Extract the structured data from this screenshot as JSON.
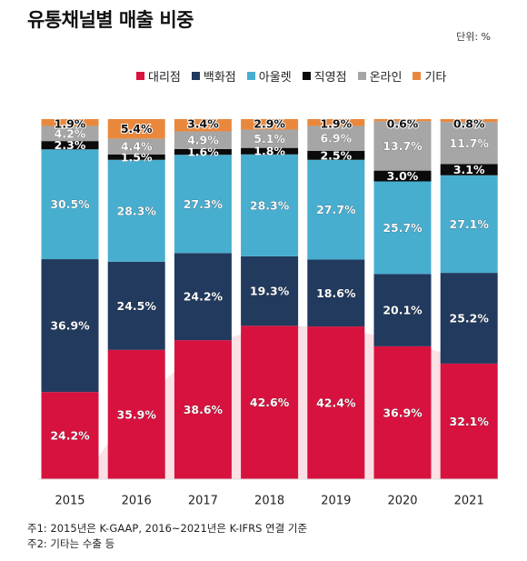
{
  "title": "유통채널별 매출 비중",
  "unit_label": "단위: %",
  "notes": [
    "주1: 2015년은 K-GAAP, 2016~2021년은 K-IFRS 연결 기준",
    "주2: 기타는 수출 등"
  ],
  "chart_data": {
    "type": "bar",
    "stacked": true,
    "percent_stacked": true,
    "categories": [
      "2015",
      "2016",
      "2017",
      "2018",
      "2019",
      "2020",
      "2021"
    ],
    "series": [
      {
        "name": "대리점",
        "color": "#d8123f",
        "values": [
          24.2,
          35.9,
          38.6,
          42.6,
          42.4,
          36.9,
          32.1
        ],
        "labels": [
          "24.2%",
          "35.9%",
          "38.6%",
          "42.6%",
          "42.4%",
          "36.9%",
          "32.1%"
        ]
      },
      {
        "name": "백화점",
        "color": "#213a5e",
        "values": [
          36.9,
          24.5,
          24.2,
          19.3,
          18.6,
          20.1,
          25.2
        ],
        "labels": [
          "36.9%",
          "24.5%",
          "24.2%",
          "19.3%",
          "18.6%",
          "20.1%",
          "25.2%"
        ]
      },
      {
        "name": "아울렛",
        "color": "#48aed0",
        "values": [
          30.5,
          28.3,
          27.3,
          28.3,
          27.7,
          25.7,
          27.1
        ],
        "labels": [
          "30.5%",
          "28.3%",
          "27.3%",
          "28.3%",
          "27.7%",
          "25.7%",
          "27.1%"
        ]
      },
      {
        "name": "직영점",
        "color": "#0b0b0b",
        "values": [
          2.3,
          1.5,
          1.6,
          1.8,
          2.5,
          3.0,
          3.1
        ],
        "labels": [
          "2.3%",
          "1.5%",
          "1.6%",
          "1.8%",
          "2.5%",
          "3.0%",
          "3.1%"
        ]
      },
      {
        "name": "온라인",
        "color": "#a6a6a6",
        "values": [
          4.2,
          4.4,
          4.9,
          5.1,
          6.9,
          13.7,
          11.7
        ],
        "labels": [
          "4.2%",
          "4.4%",
          "4.9%",
          "5.1%",
          "6.9%",
          "13.7%",
          "11.7%"
        ]
      },
      {
        "name": "기타",
        "color": "#e9883d",
        "values": [
          1.9,
          5.4,
          3.4,
          2.9,
          1.9,
          0.6,
          0.8
        ],
        "labels": [
          "1.9%",
          "5.4%",
          "3.4%",
          "2.9%",
          "1.9%",
          "0.6%",
          "0.8%"
        ]
      }
    ],
    "ylim": [
      0,
      100
    ],
    "grid": false,
    "legend_position": "top-center",
    "background_accent": "#fbe1e5"
  }
}
